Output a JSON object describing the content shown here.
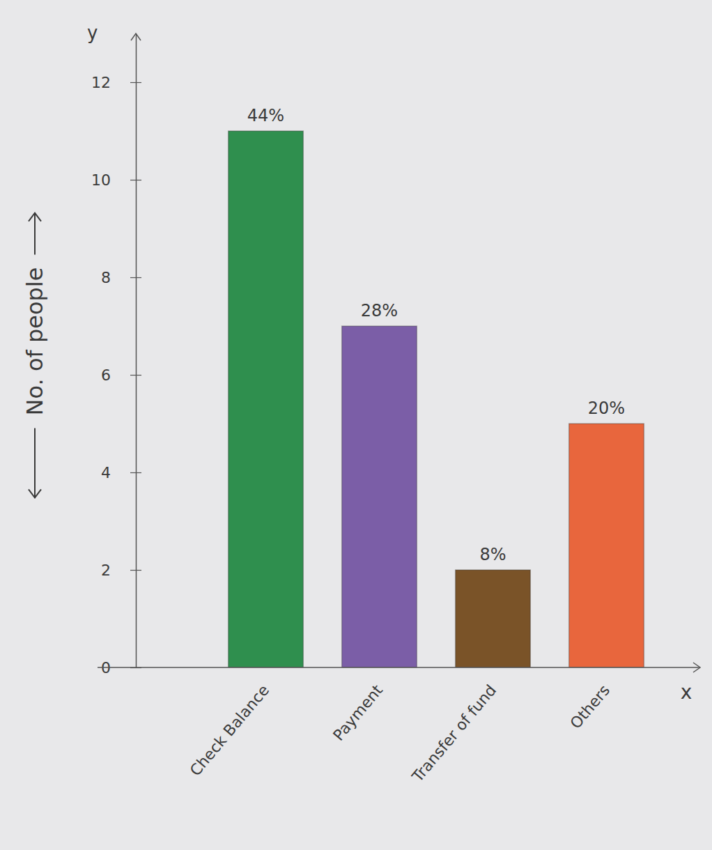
{
  "chart_data": {
    "type": "bar",
    "categories": [
      "Check Balance",
      "Payment",
      "Transfer of fund",
      "Others"
    ],
    "values": [
      11,
      7,
      2,
      5
    ],
    "colors": [
      "#2f8f4e",
      "#7b5ea7",
      "#7a5328",
      "#e8663d"
    ],
    "annotations": [
      "44%",
      "28%",
      "8%",
      "20%"
    ],
    "y_label": "No. of people",
    "y_axis_letter": "y",
    "x_label": "x",
    "ylim": [
      0,
      13
    ],
    "yticks": [
      0,
      2,
      4,
      6,
      8,
      10,
      12
    ],
    "grid": false
  }
}
